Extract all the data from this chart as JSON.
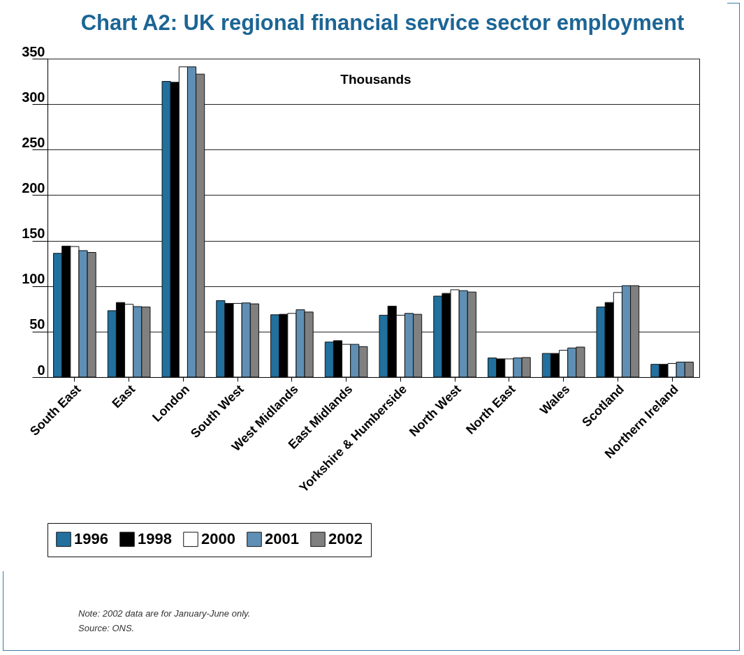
{
  "chart_data": {
    "type": "bar",
    "title": "Chart A2: UK regional financial service sector employment",
    "categories": [
      "South East",
      "East",
      "London",
      "South West",
      "West Midlands",
      "East Midlands",
      "Yorkshire & Humberside",
      "North West",
      "North East",
      "Wales",
      "Scotland",
      "Northern Ireland"
    ],
    "series": [
      {
        "name": "1996",
        "color": "#21709e",
        "values": [
          136,
          73,
          325,
          84,
          68.5,
          38.5,
          68,
          89,
          21,
          26,
          77,
          14
        ]
      },
      {
        "name": "1998",
        "color": "#000000",
        "values": [
          144,
          82,
          324,
          81,
          69,
          40,
          78,
          92,
          20,
          26,
          82,
          14
        ]
      },
      {
        "name": "2000",
        "color": "#ffffff",
        "values": [
          143.5,
          80,
          341,
          81,
          70,
          36,
          68,
          96,
          20,
          29.5,
          93,
          15
        ]
      },
      {
        "name": "2001",
        "color": "#5f8fb4",
        "values": [
          139,
          77.5,
          341,
          81.5,
          74,
          36,
          70,
          95,
          21,
          32,
          100.5,
          16.5
        ]
      },
      {
        "name": "2002",
        "color": "#808080",
        "values": [
          137,
          77,
          333,
          80.5,
          71.5,
          33.5,
          69,
          93.5,
          21.5,
          33,
          100.5,
          16.5
        ]
      }
    ],
    "ylim": [
      0,
      350
    ],
    "yticks": [
      0,
      50,
      100,
      150,
      200,
      250,
      300,
      350
    ],
    "grid": "y",
    "legend": "bottom",
    "annotations": [
      "Thousands",
      "Note: 2002 data are for January-June only.",
      "Source: ONS."
    ]
  }
}
